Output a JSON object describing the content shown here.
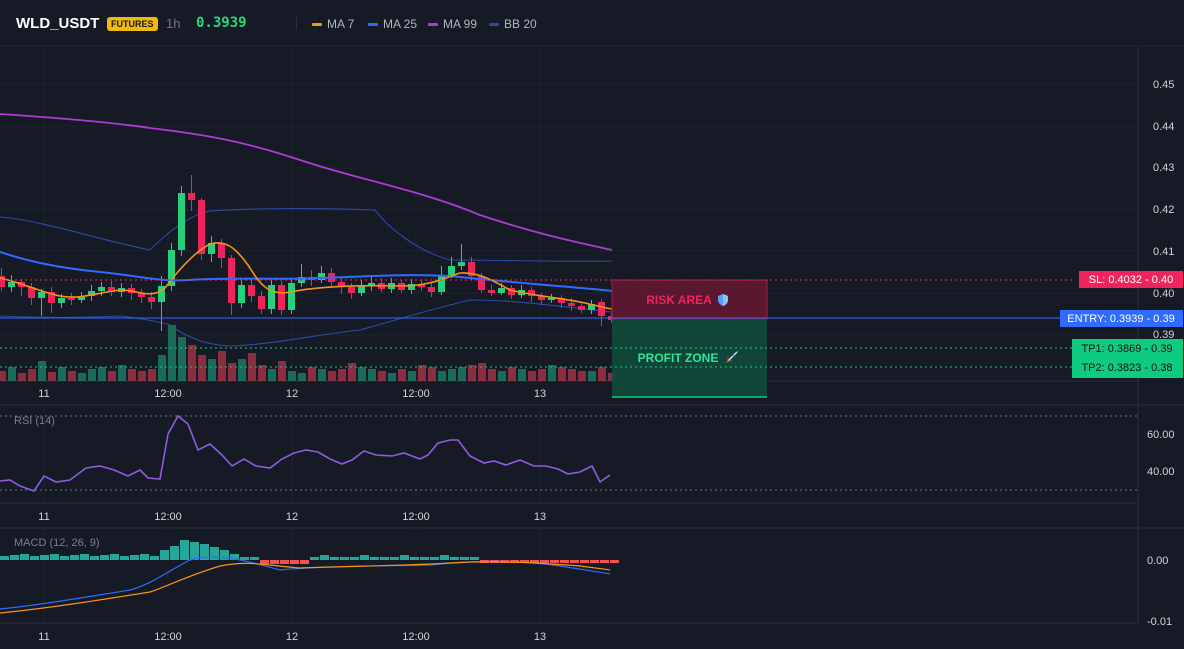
{
  "header": {
    "symbol": "WLD_USDT",
    "badge": "FUTURES",
    "timeframe": "1h",
    "price": "0.3939",
    "legend": [
      {
        "label": "MA 7",
        "color": "#f7931a"
      },
      {
        "label": "MA 25",
        "color": "#2f6bff"
      },
      {
        "label": "MA 99",
        "color": "#b03ad6"
      },
      {
        "label": "BB 20",
        "color": "#2c4aa8"
      }
    ]
  },
  "price_panel": {
    "y_ticks": [
      "0.45",
      "0.44",
      "0.43",
      "0.42",
      "0.41",
      "0.40",
      "0.39",
      "0.39",
      "0.38"
    ],
    "zones": {
      "risk_label": "RISK AREA",
      "profit_label": "PROFIT ZONE"
    },
    "levels": {
      "sl": "SL: 0.4032 - 0.40",
      "entry": "ENTRY: 0.3939 - 0.39",
      "tp1": "TP1: 0.3869 - 0.39",
      "tp2": "TP2: 0.3823 - 0.38"
    },
    "colors": {
      "up": "#26d07c",
      "down": "#f0245c",
      "sl": "#f0245c",
      "entry": "#2f6bff",
      "tp": "#0ecb81"
    }
  },
  "rsi_panel": {
    "title": "RSI (14)",
    "y_ticks": [
      "60.00",
      "40.00"
    ]
  },
  "macd_panel": {
    "title": "MACD (12, 26, 9)",
    "y_ticks": [
      "0.00",
      "-0.01"
    ]
  },
  "time_axis": [
    "11",
    "12:00",
    "12",
    "12:00",
    "13"
  ]
}
